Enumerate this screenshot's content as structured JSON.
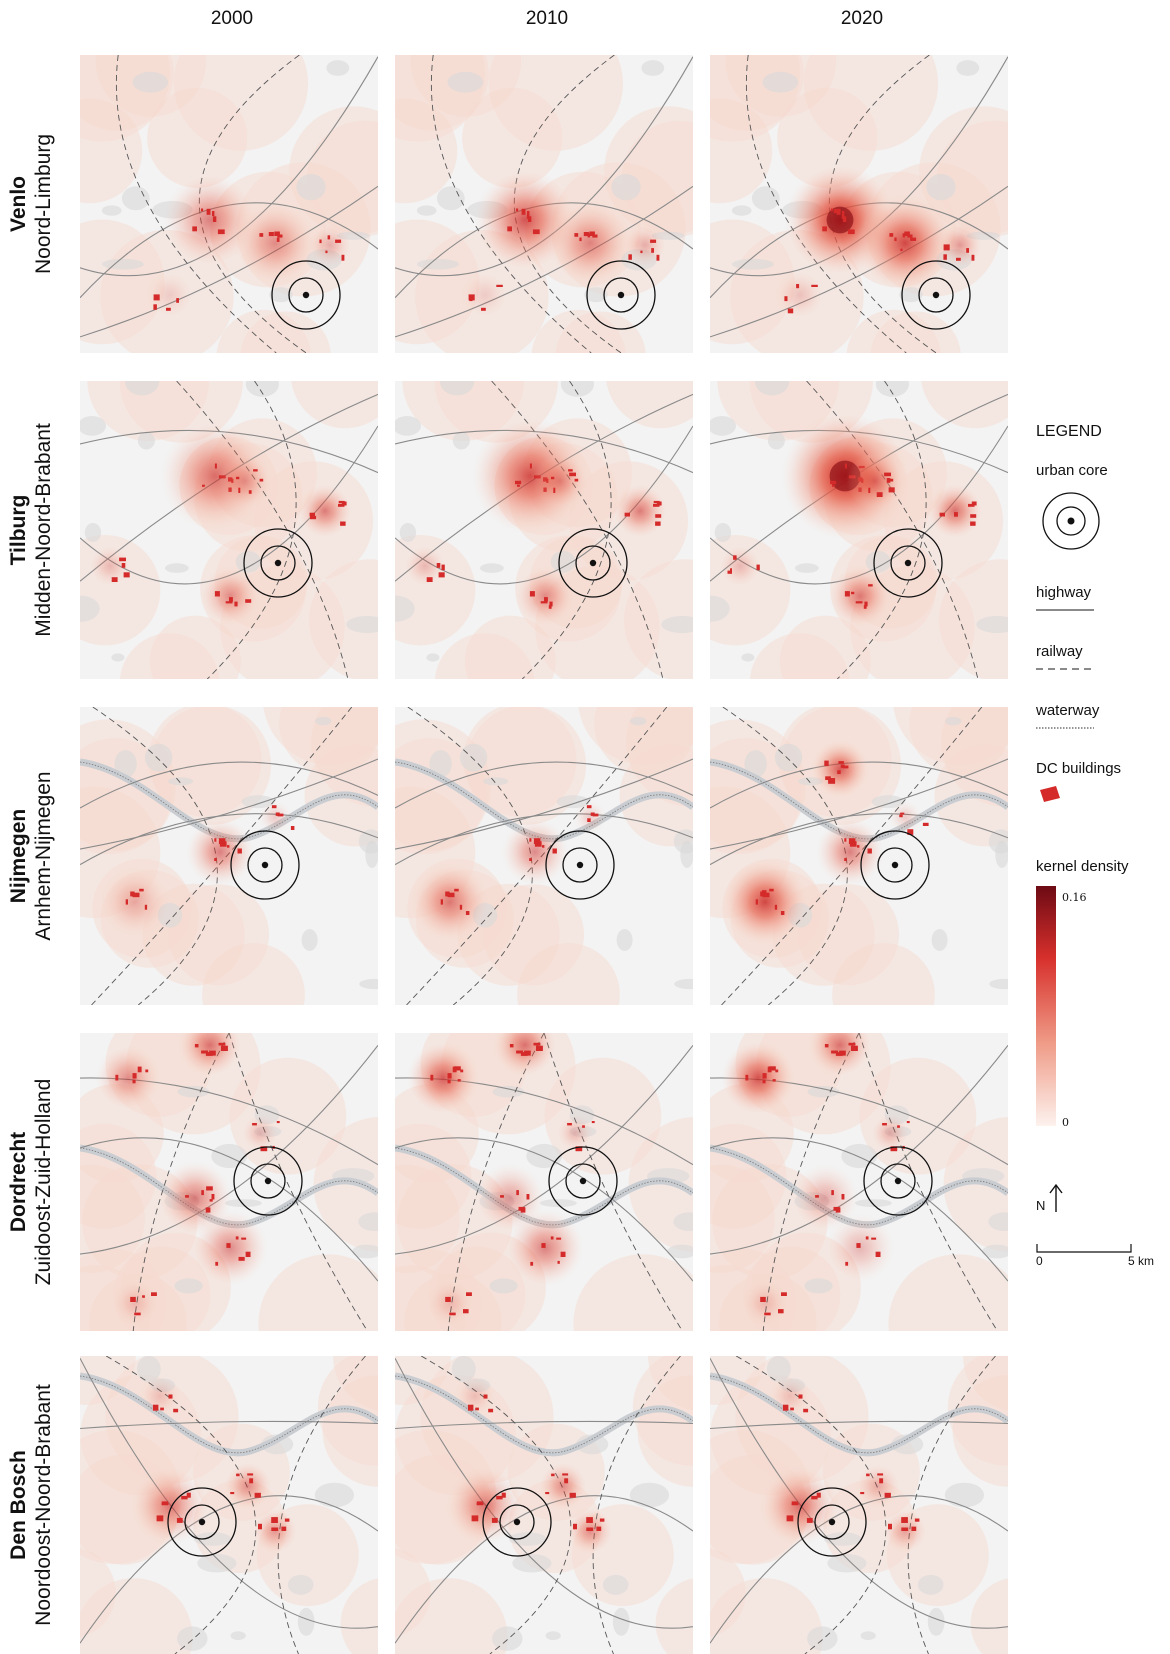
{
  "columns": [
    "2000",
    "2010",
    "2020"
  ],
  "rows": [
    {
      "city": "Venlo",
      "region": "Noord-Limburg"
    },
    {
      "city": "Tilburg",
      "region": "Midden-Noord-Brabant"
    },
    {
      "city": "Nijmegen",
      "region": "Arnhem-Nijmegen"
    },
    {
      "city": "Dordrecht",
      "region": "Zuidoost-Zuid-Holland"
    },
    {
      "city": "Den Bosch",
      "region": "Noordoost-Noord-Brabant"
    }
  ],
  "legend": {
    "title": "LEGEND",
    "urban_core": "urban core",
    "highway": "highway",
    "railway": "railway",
    "waterway": "waterway",
    "dc_buildings": "DC buildings",
    "kernel_density": "kernel density",
    "density_max": "0.16",
    "density_min": "0",
    "north": "N",
    "scale_start": "0",
    "scale_end": "5 km"
  },
  "colors": {
    "density_high": "#6d0a14",
    "density_mid": "#e1473a",
    "density_low": "#fbe6df",
    "dc_building": "#d42a2a",
    "map_bg": "#f3f3f3"
  }
}
